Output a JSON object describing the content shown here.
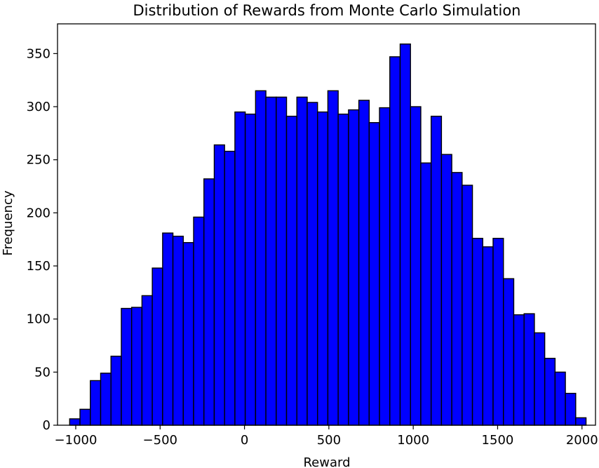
{
  "chart_data": {
    "type": "bar",
    "title": "Distribution of Rewards from Monte Carlo Simulation",
    "xlabel": "Reward",
    "ylabel": "Frequency",
    "bar_color": "#0000ff",
    "edge_color": "#000000",
    "xlim": [
      -1108,
      2080
    ],
    "ylim": [
      0,
      378
    ],
    "xticks": [
      -1000,
      -500,
      0,
      500,
      1000,
      1500,
      2000
    ],
    "xtick_labels": [
      "−1000",
      "−500",
      "0",
      "500",
      "1000",
      "1500",
      "2000"
    ],
    "yticks": [
      0,
      50,
      100,
      150,
      200,
      250,
      300,
      350
    ],
    "yticks_labels": [
      "0",
      "50",
      "100",
      "150",
      "200",
      "250",
      "300",
      "350"
    ],
    "bin_start": -1036,
    "bin_width": 61.2,
    "values": [
      6,
      15,
      42,
      49,
      65,
      110,
      111,
      122,
      148,
      181,
      178,
      172,
      196,
      232,
      264,
      258,
      295,
      293,
      315,
      309,
      309,
      291,
      309,
      304,
      295,
      315,
      293,
      297,
      306,
      285,
      299,
      347,
      359,
      300,
      247,
      291,
      255,
      238,
      226,
      176,
      168,
      176,
      138,
      104,
      105,
      87,
      63,
      50,
      30,
      7
    ]
  }
}
